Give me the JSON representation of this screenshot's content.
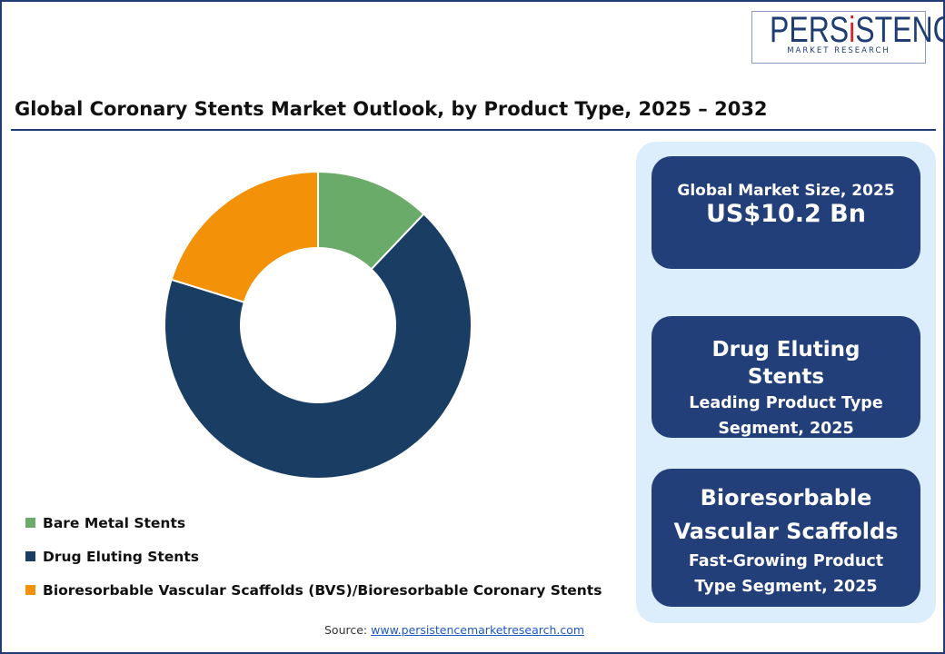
{
  "logo": {
    "text": "PERSiSTENCE",
    "subtext": "MARKET RESEARCH"
  },
  "title": "Global Coronary Stents Market Outlook, by Product Type, 2025 – 2032",
  "cards": [
    {
      "label": "Global Market Size, 2025",
      "value": "US$10.2 Bn"
    },
    {
      "heading": "Drug Eluting Stents",
      "sub": "Leading Product Type Segment, 2025"
    },
    {
      "heading": "Bioresorbable Vascular Scaffolds",
      "sub": "Fast-Growing Product Type Segment, 2025"
    }
  ],
  "source": {
    "label": "Source:",
    "link": "www.persistencemarketresearch.com"
  },
  "chart_data": {
    "type": "pie",
    "donut": true,
    "categories": [
      "Bare Metal Stents",
      "Drug Eluting Stents",
      "Bioresorbable Vascular Scaffolds (BVS)/Bioresorbable Coronary Stents"
    ],
    "values": [
      12.1,
      67.7,
      20.2
    ],
    "colors": [
      "#6aab69",
      "#1a3d63",
      "#f39208"
    ],
    "legend": "bottom-left"
  }
}
